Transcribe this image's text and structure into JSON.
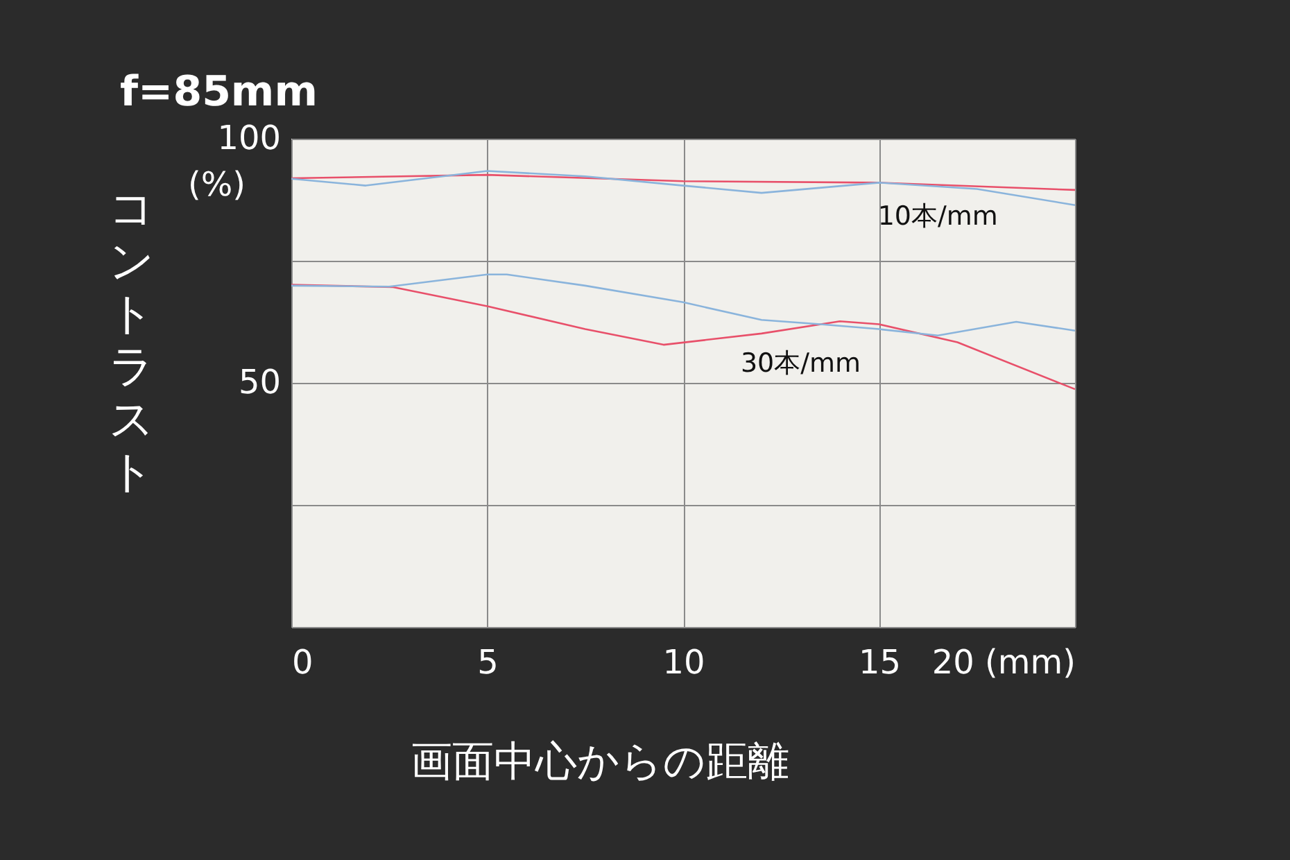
{
  "chart_data": {
    "type": "line",
    "title": "f=85mm",
    "xlabel": "画面中心からの距離",
    "ylabel": "コントラスト",
    "series": [
      {
        "color": "#e8506a",
        "x": [
          0,
          5,
          10,
          15,
          20
        ],
        "values": [
          91.9,
          92.6,
          91.3,
          91.0,
          89.5
        ]
      },
      {
        "color": "#8ab4dc",
        "x": [
          0,
          1.9,
          5,
          7.5,
          10,
          12,
          15,
          17.5,
          20
        ],
        "values": [
          91.8,
          90.4,
          93.4,
          92.3,
          90.4,
          88.9,
          91.0,
          89.7,
          86.4
        ]
      },
      {
        "color": "#e8506a",
        "x": [
          0,
          2.6,
          5,
          7.5,
          9.5,
          12,
          14,
          15,
          17,
          20
        ],
        "values": [
          70.1,
          69.6,
          65.7,
          61.0,
          57.8,
          60.1,
          62.6,
          62.0,
          58.3,
          48.7
        ]
      },
      {
        "color": "#8ab4dc",
        "x": [
          0,
          2.5,
          5,
          5.5,
          7.5,
          10,
          12,
          13.5,
          15,
          16.5,
          18.5,
          20
        ],
        "values": [
          69.9,
          69.7,
          72.2,
          72.2,
          69.9,
          66.5,
          62.9,
          62.0,
          61.0,
          59.7,
          62.5,
          60.7
        ]
      }
    ],
    "annotations": [
      "(%)",
      "10本/mm",
      "30本/mm"
    ],
    "xlim": [
      0,
      20
    ],
    "xticks": [
      0,
      5,
      10,
      15,
      {
        "value": 20,
        "label": "20 (mm)"
      }
    ],
    "ylim": [
      0,
      100
    ],
    "yticks": [
      {
        "value": 0,
        "label": null
      },
      {
        "value": 25,
        "label": null
      },
      50,
      {
        "value": 75,
        "label": null
      },
      100
    ],
    "grid": true,
    "marker": "none",
    "line_style": "solid"
  }
}
